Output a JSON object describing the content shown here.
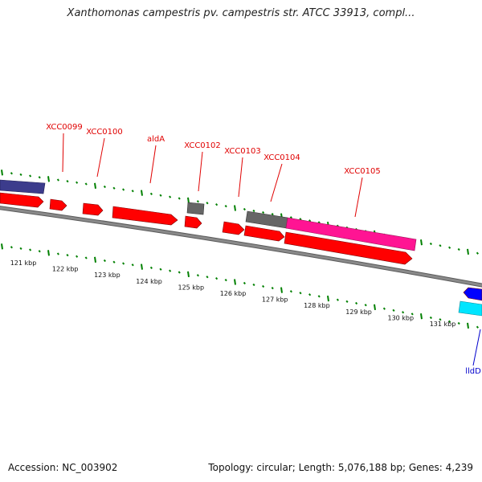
{
  "title": "Xanthomonas campestris pv. campestris str. ATCC 33913, compl...",
  "footer": {
    "accession": "Accession: NC_003902",
    "summary": "Topology: circular; Length: 5,076,188 bp; Genes: 4,239"
  },
  "colors": {
    "gene_red": "#ff0000",
    "gene_gray": "#666666",
    "gene_magenta": "#ff1493",
    "gene_navy": "#3c3c8c",
    "gene_blue": "#0000ff",
    "gene_cyan": "#00e5ff",
    "backbone": "#8a8a8a",
    "ticks": "#008000",
    "label_red": "#e00000",
    "label_blue": "#0000cc"
  },
  "scale_labels": [
    "121 kbp",
    "122 kbp",
    "123 kbp",
    "124 kbp",
    "125 kbp",
    "126 kbp",
    "127 kbp",
    "128 kbp",
    "129 kbp",
    "130 kbp",
    "131 kbp"
  ],
  "gene_labels": [
    {
      "text": "XCC0099",
      "color": "red"
    },
    {
      "text": "XCC0100",
      "color": "red"
    },
    {
      "text": "aldA",
      "color": "red"
    },
    {
      "text": "XCC0102",
      "color": "red"
    },
    {
      "text": "XCC0103",
      "color": "red"
    },
    {
      "text": "XCC0104",
      "color": "red"
    },
    {
      "text": "XCC0105",
      "color": "red"
    },
    {
      "text": "lldD",
      "color": "blue"
    }
  ]
}
